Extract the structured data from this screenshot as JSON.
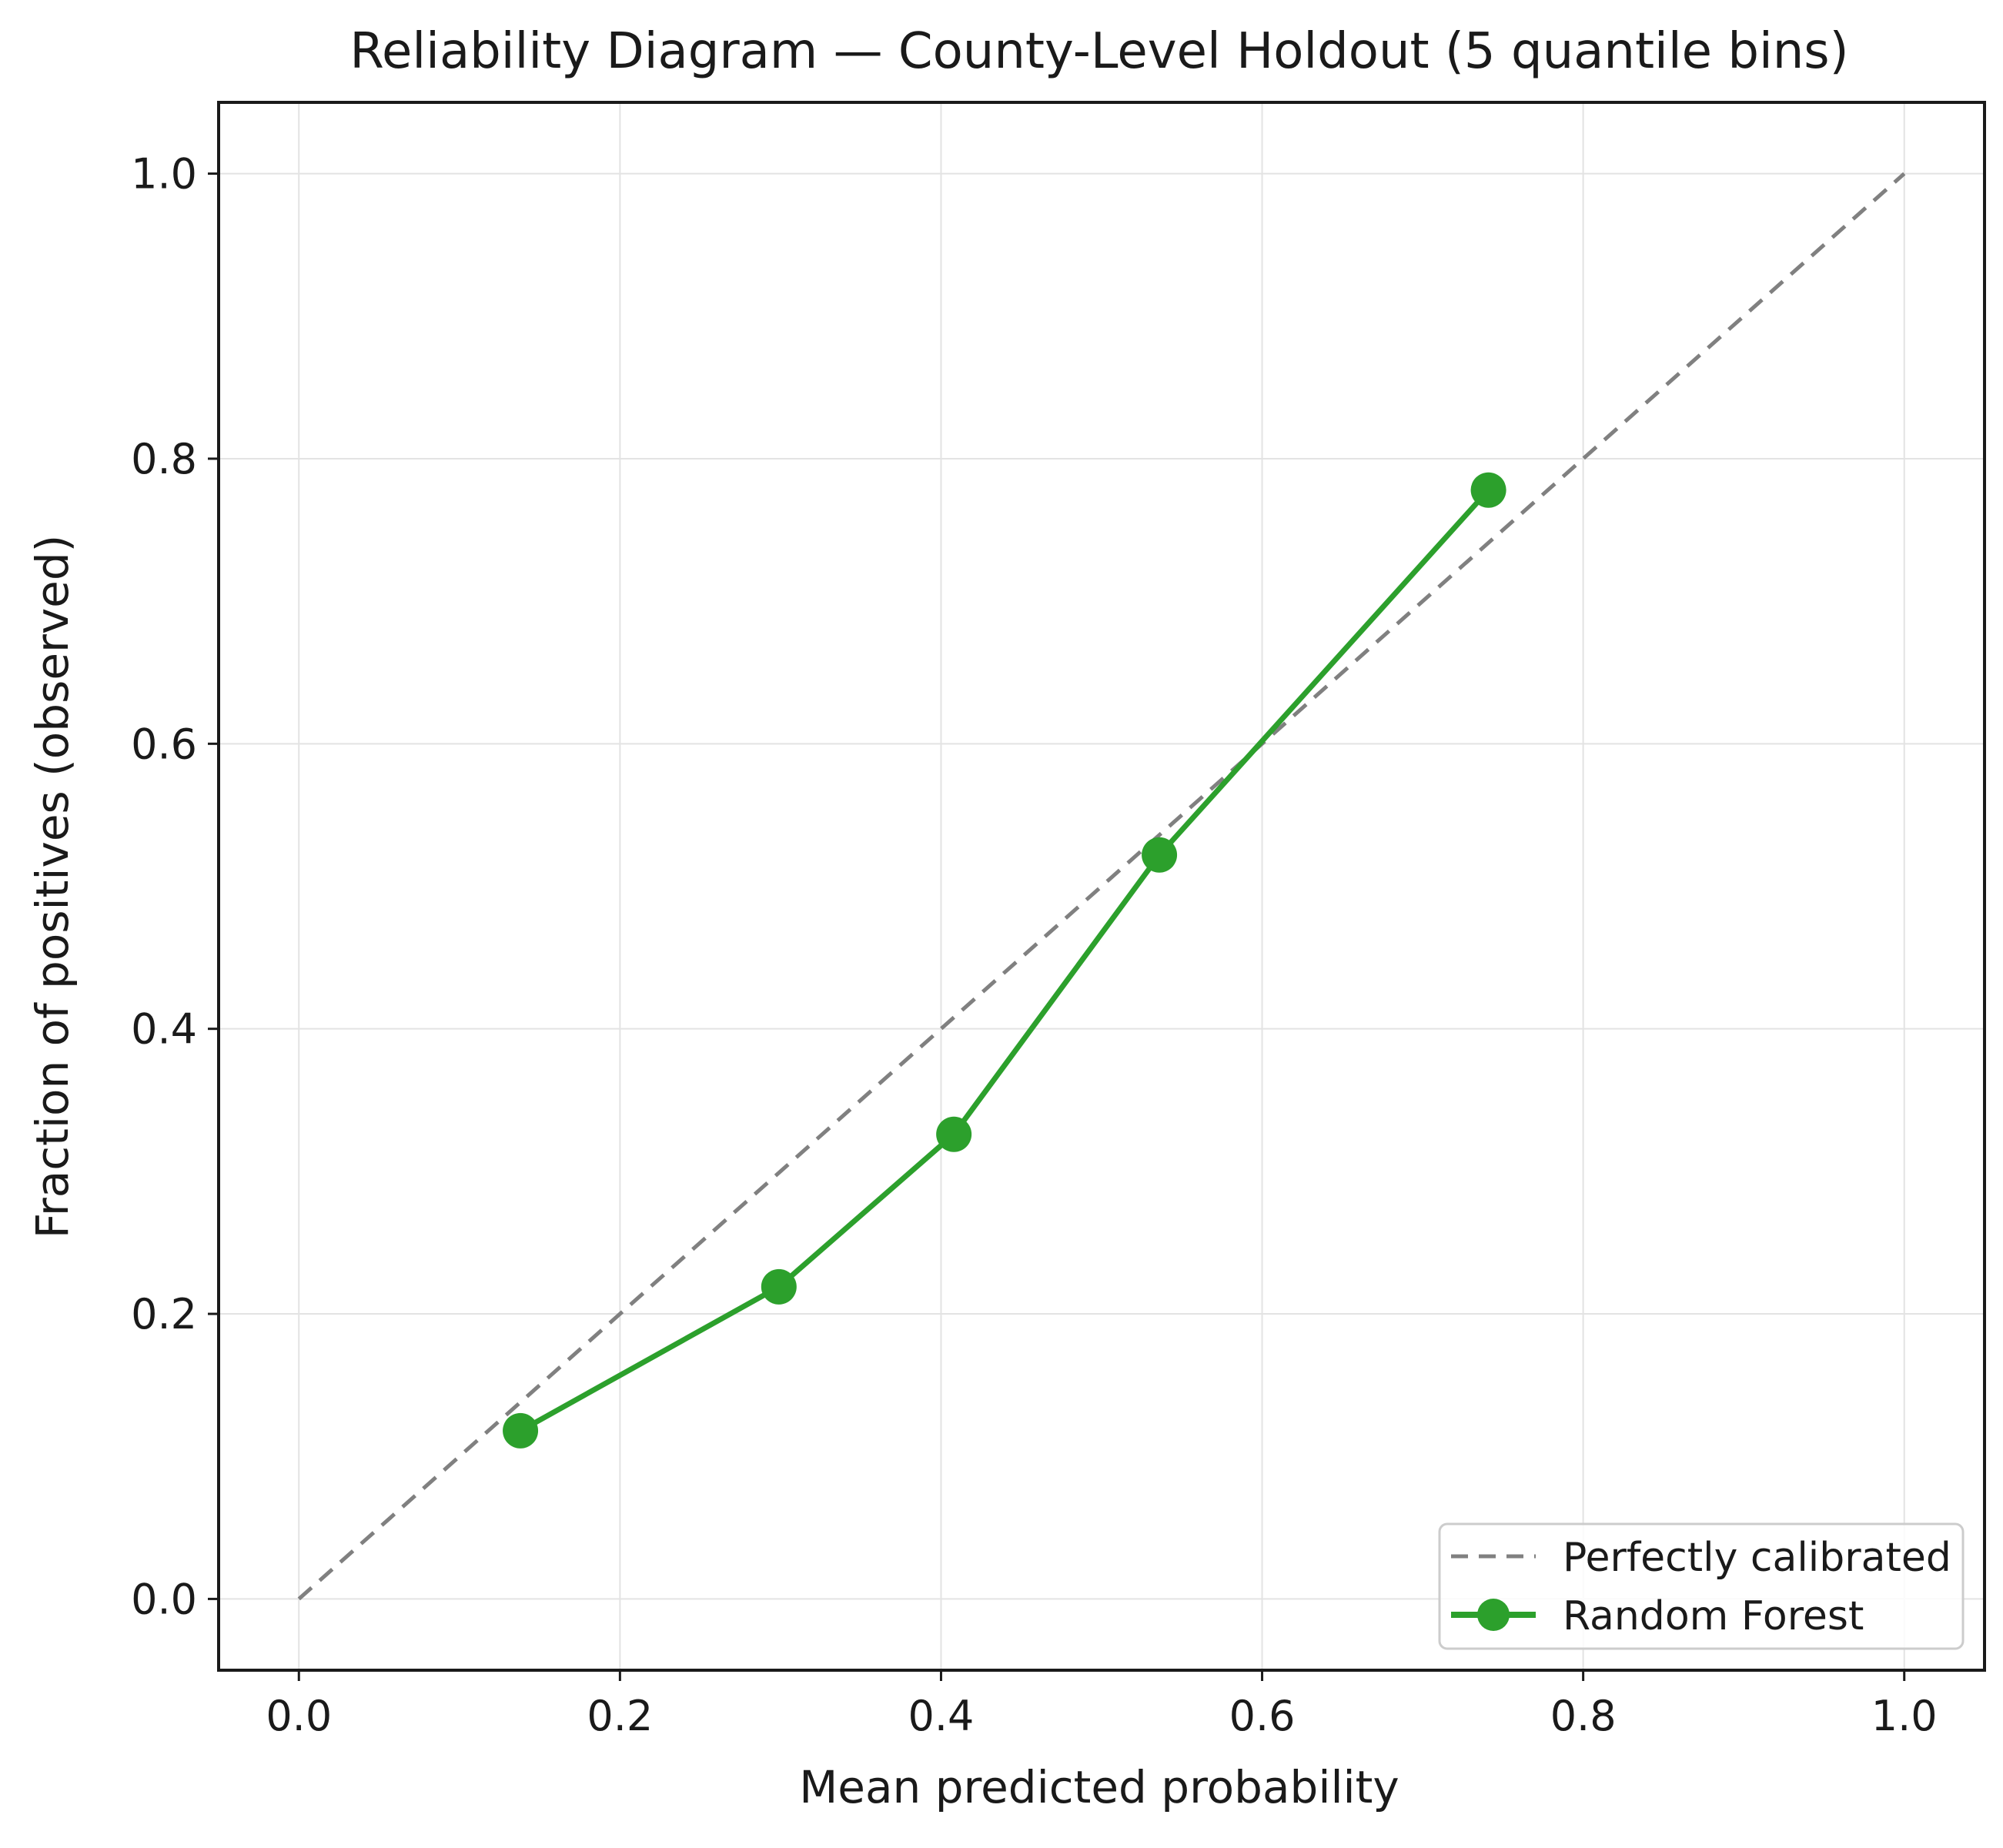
{
  "chart_data": {
    "type": "line",
    "title": "Reliability Diagram — County-Level Holdout (5 quantile bins)",
    "xlabel": "Mean predicted probability",
    "ylabel": "Fraction of positives (observed)",
    "xlim": [
      -0.05,
      1.05
    ],
    "ylim": [
      -0.05,
      1.05
    ],
    "xticks": [
      0.0,
      0.2,
      0.4,
      0.6,
      0.8,
      1.0
    ],
    "yticks": [
      0.0,
      0.2,
      0.4,
      0.6,
      0.8,
      1.0
    ],
    "xtick_labels": [
      "0.0",
      "0.2",
      "0.4",
      "0.6",
      "0.8",
      "1.0"
    ],
    "ytick_labels": [
      "0.0",
      "0.2",
      "0.4",
      "0.6",
      "0.8",
      "1.0"
    ],
    "grid": true,
    "legend_position": "lower right",
    "series": [
      {
        "name": "Perfectly calibrated",
        "style": "dashed",
        "color": "#808080",
        "x": [
          0.0,
          1.0
        ],
        "y": [
          0.0,
          1.0
        ]
      },
      {
        "name": "Random Forest",
        "style": "solid-with-markers",
        "color": "#2ca02c",
        "x": [
          0.138,
          0.299,
          0.408,
          0.536,
          0.741
        ],
        "y": [
          0.118,
          0.219,
          0.326,
          0.522,
          0.778
        ]
      }
    ]
  }
}
